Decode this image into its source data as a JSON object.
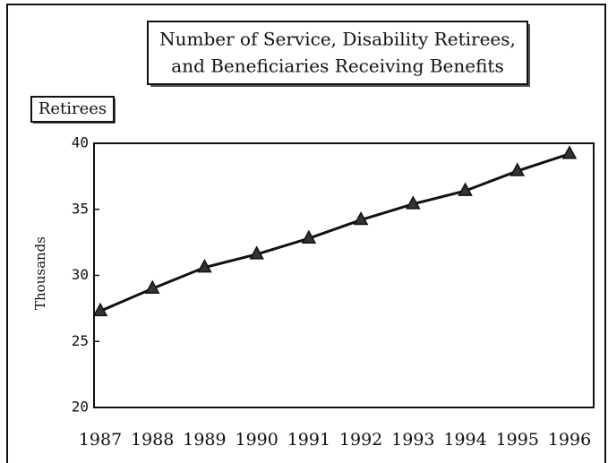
{
  "chart_data": {
    "type": "line",
    "title": [
      "Number of Service, Disability Retirees,",
      "and Beneficiaries Receiving Benefits"
    ],
    "series_label": "Retirees",
    "y_axis_label": "Thousands",
    "categories": [
      "1987",
      "1988",
      "1989",
      "1990",
      "1991",
      "1992",
      "1993",
      "1994",
      "1995",
      "1996"
    ],
    "values": [
      27.3,
      29.0,
      30.6,
      31.6,
      32.8,
      34.2,
      35.4,
      36.4,
      37.9,
      39.2
    ],
    "color": "#111111",
    "ylim": [
      20,
      40
    ],
    "yticks": [
      20,
      25,
      30,
      35,
      40
    ],
    "grid": false
  }
}
